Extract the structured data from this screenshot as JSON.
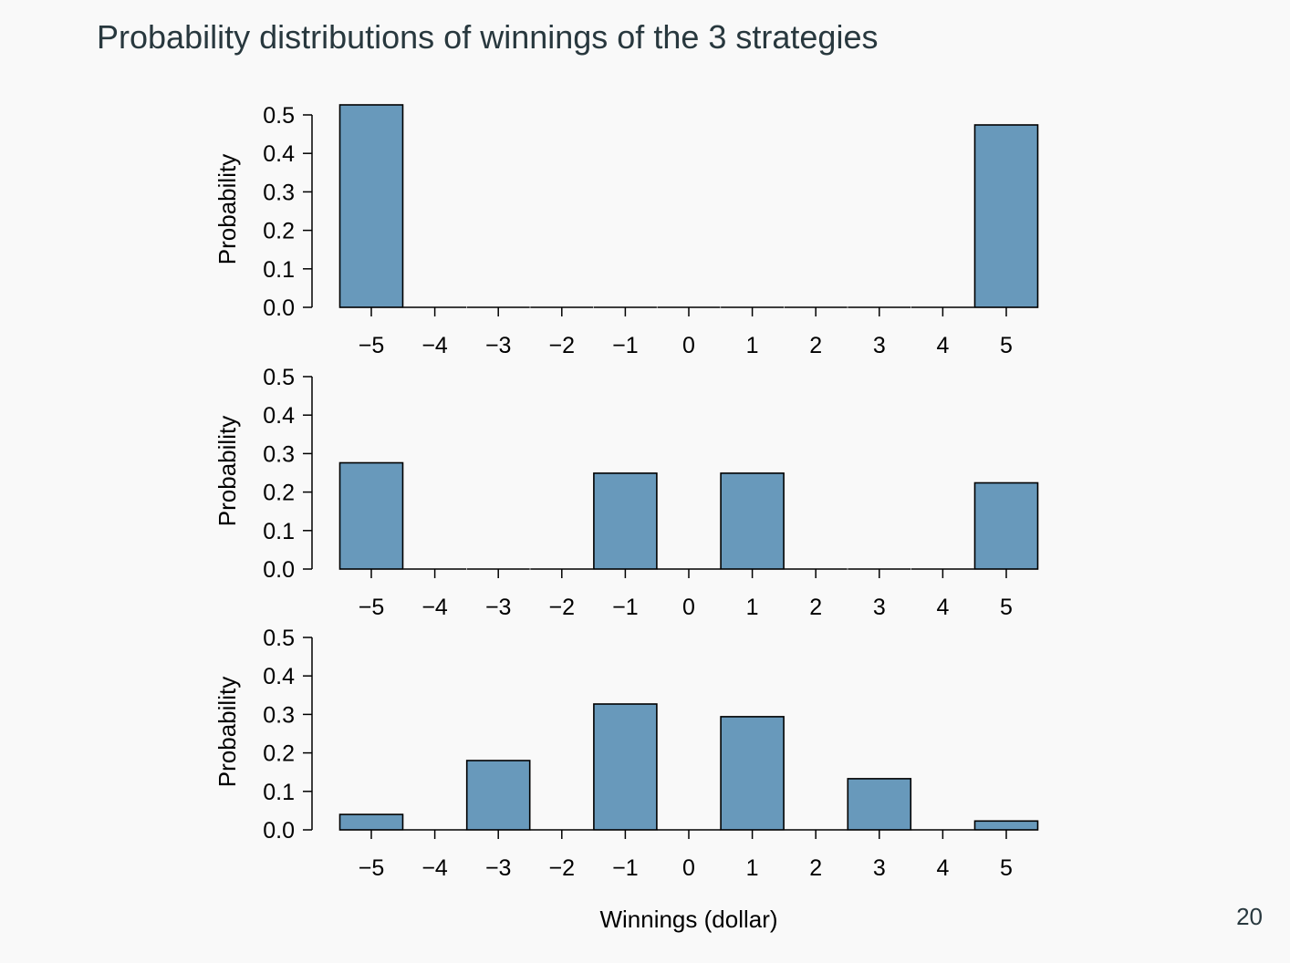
{
  "slide": {
    "title": "Probability distributions of winnings of the 3 strategies",
    "page_number": "20"
  },
  "colors": {
    "bar_fill": "#6899bb",
    "bar_stroke": "#000000",
    "background": "#f9f9f9",
    "title_text": "#28383e"
  },
  "chart_data": [
    {
      "type": "bar",
      "categories": [
        "−5",
        "−4",
        "−3",
        "−2",
        "−1",
        "0",
        "1",
        "2",
        "3",
        "4",
        "5"
      ],
      "values": [
        0.526,
        0,
        0,
        0,
        0,
        0,
        0,
        0,
        0,
        0,
        0.474
      ],
      "ylabel": "Probability",
      "xlabel": "",
      "ylim": [
        0,
        0.5
      ],
      "yticks": [
        "0.0",
        "0.1",
        "0.2",
        "0.3",
        "0.4",
        "0.5"
      ],
      "grid": false,
      "legend": false
    },
    {
      "type": "bar",
      "categories": [
        "−5",
        "−4",
        "−3",
        "−2",
        "−1",
        "0",
        "1",
        "2",
        "3",
        "4",
        "5"
      ],
      "values": [
        0.276,
        0,
        0,
        0,
        0.249,
        0,
        0.249,
        0,
        0,
        0,
        0.224
      ],
      "ylabel": "Probability",
      "xlabel": "",
      "ylim": [
        0,
        0.5
      ],
      "yticks": [
        "0.0",
        "0.1",
        "0.2",
        "0.3",
        "0.4",
        "0.5"
      ],
      "grid": false,
      "legend": false
    },
    {
      "type": "bar",
      "categories": [
        "−5",
        "−4",
        "−3",
        "−2",
        "−1",
        "0",
        "1",
        "2",
        "3",
        "4",
        "5"
      ],
      "values": [
        0.04,
        0,
        0.18,
        0,
        0.327,
        0,
        0.294,
        0,
        0.133,
        0,
        0.023
      ],
      "ylabel": "Probability",
      "xlabel": "Winnings (dollar)",
      "ylim": [
        0,
        0.5
      ],
      "yticks": [
        "0.0",
        "0.1",
        "0.2",
        "0.3",
        "0.4",
        "0.5"
      ],
      "grid": false,
      "legend": false
    }
  ]
}
